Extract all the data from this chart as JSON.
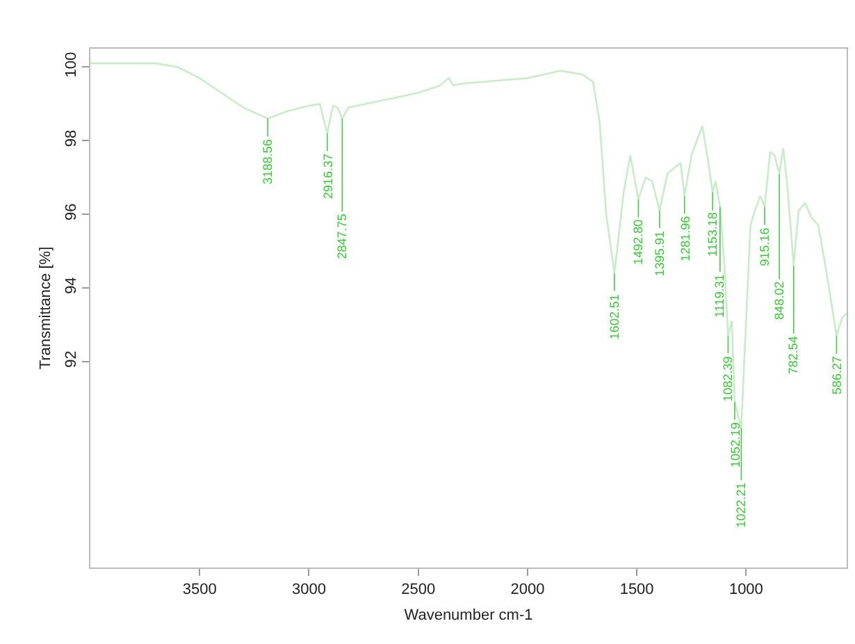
{
  "chart_data": {
    "type": "line",
    "xlabel": "Wavenumber cm-1",
    "ylabel": "Transmittance [%]",
    "xlim": [
      4000,
      540
    ],
    "ylim": [
      86.4,
      100.5
    ],
    "xticks": [
      3500,
      3000,
      2500,
      2000,
      1500,
      1000
    ],
    "yticks": [
      92,
      94,
      96,
      98,
      100
    ],
    "marker": "none",
    "line_style": "solid",
    "series": [
      {
        "color": "#c8ecc8",
        "x": [
          4000,
          3700,
          3600,
          3500,
          3400,
          3300,
          3188.56,
          3100,
          3000,
          2950,
          2916.37,
          2890,
          2870,
          2847.75,
          2820,
          2700,
          2500,
          2400,
          2360,
          2340,
          2300,
          2000,
          1850,
          1800,
          1750,
          1700,
          1670,
          1640,
          1602.51,
          1560,
          1530,
          1492.8,
          1460,
          1430,
          1395.91,
          1360,
          1300,
          1281.96,
          1250,
          1200,
          1170,
          1153.18,
          1140,
          1119.31,
          1100,
          1082.39,
          1065,
          1052.19,
          1022.21,
          980,
          960,
          935,
          915.16,
          890,
          870,
          848.02,
          830,
          810,
          782.54,
          760,
          730,
          700,
          670,
          640,
          610,
          586.27,
          560,
          540
        ],
        "values": [
          100.1,
          100.1,
          100.0,
          99.7,
          99.3,
          98.9,
          98.6,
          98.8,
          98.95,
          99.0,
          98.2,
          98.95,
          98.9,
          98.6,
          98.9,
          99.05,
          99.3,
          99.5,
          99.7,
          99.5,
          99.55,
          99.7,
          99.9,
          99.85,
          99.8,
          99.6,
          98.5,
          96.0,
          94.4,
          96.6,
          97.6,
          96.4,
          97.0,
          96.9,
          96.1,
          97.1,
          97.4,
          96.5,
          97.6,
          98.4,
          97.3,
          96.6,
          96.9,
          96.2,
          94.7,
          92.7,
          93.1,
          90.9,
          90.2,
          95.7,
          96.1,
          96.5,
          96.2,
          97.7,
          97.6,
          97.1,
          97.8,
          96.7,
          94.6,
          96.1,
          96.3,
          95.9,
          95.7,
          94.7,
          93.6,
          92.7,
          93.2,
          93.3
        ]
      }
    ],
    "annotations": [
      {
        "text": "3188.56",
        "x": 3188.56,
        "y": 98.6
      },
      {
        "text": "2916.37",
        "x": 2916.37,
        "y": 98.2
      },
      {
        "text": "2847.75",
        "x": 2847.75,
        "y": 98.6
      },
      {
        "text": "1602.51",
        "x": 1602.51,
        "y": 94.4
      },
      {
        "text": "1492.80",
        "x": 1492.8,
        "y": 96.4
      },
      {
        "text": "1395.91",
        "x": 1395.91,
        "y": 96.1
      },
      {
        "text": "1281.96",
        "x": 1281.96,
        "y": 96.5
      },
      {
        "text": "1153.18",
        "x": 1153.18,
        "y": 96.6
      },
      {
        "text": "1119.31",
        "x": 1119.31,
        "y": 96.2
      },
      {
        "text": "1082.39",
        "x": 1082.39,
        "y": 92.7
      },
      {
        "text": "1052.19",
        "x": 1052.19,
        "y": 90.9
      },
      {
        "text": "1022.21",
        "x": 1022.21,
        "y": 90.2
      },
      {
        "text": "915.16",
        "x": 915.16,
        "y": 96.2
      },
      {
        "text": "848.02",
        "x": 848.02,
        "y": 97.1
      },
      {
        "text": "782.54",
        "x": 782.54,
        "y": 94.6
      },
      {
        "text": "586.27",
        "x": 586.27,
        "y": 92.7
      }
    ]
  }
}
